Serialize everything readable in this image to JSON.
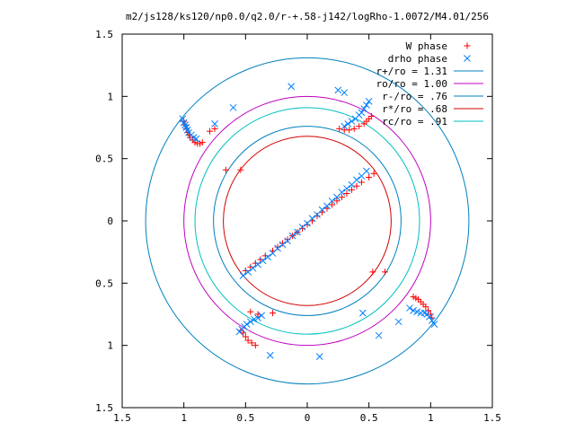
{
  "chart_data": {
    "type": "scatter",
    "title": "m2/js128/ks120/np0.0/q2.0/r-+.58-j142/logRho-1.0072/M4.01/256",
    "xlim": [
      -1.5,
      1.5
    ],
    "ylim": [
      -1.5,
      1.5
    ],
    "xticks": [
      -1.5,
      -1,
      -0.5,
      0,
      0.5,
      1,
      1.5
    ],
    "yticks": [
      -1.5,
      -1,
      -0.5,
      0,
      0.5,
      1,
      1.5
    ],
    "xtick_labels": [
      "1.5",
      "1",
      "0.5",
      "0",
      "0.5",
      "1",
      "1.5"
    ],
    "ytick_labels": [
      "1.5",
      "1",
      "0.5",
      "0",
      "0.5",
      "1",
      "1.5"
    ],
    "grid": false,
    "legend_placement": "top-right",
    "legend": [
      {
        "label": "W phase",
        "kind": "plus",
        "color": "#ff0000"
      },
      {
        "label": "drho phase",
        "kind": "cross",
        "color": "#0080ff"
      },
      {
        "label": "r+/ro = 1.31",
        "kind": "line",
        "color": "#0080c0"
      },
      {
        "label": "ro/ro = 1.00",
        "kind": "line",
        "color": "#c000c0"
      },
      {
        "label": "r-/ro = .76",
        "kind": "line",
        "color": "#0080c0"
      },
      {
        "label": "r*/ro = .68",
        "kind": "line",
        "color": "#d00000"
      },
      {
        "label": "rc/ro = .91",
        "kind": "line",
        "color": "#00c0c0"
      }
    ],
    "circles": [
      {
        "name": "r+/ro",
        "r": 1.31,
        "color": "#0080c0"
      },
      {
        "name": "ro/ro",
        "r": 1.0,
        "color": "#c000c0"
      },
      {
        "name": "r-/ro",
        "r": 0.76,
        "color": "#0080c0"
      },
      {
        "name": "r*/ro",
        "r": 0.68,
        "color": "#d00000"
      },
      {
        "name": "rc/ro",
        "r": 0.91,
        "color": "#00c0c0"
      }
    ],
    "series": [
      {
        "name": "W phase",
        "marker": "plus",
        "color": "#ff0000",
        "x": [
          -0.28,
          -0.24,
          -0.2,
          -0.16,
          -0.12,
          -0.08,
          -0.04,
          0.0,
          0.04,
          0.08,
          0.12,
          0.16,
          0.2,
          0.24,
          0.28,
          0.32,
          0.36,
          0.4,
          0.44,
          0.5,
          0.54,
          -0.5,
          -0.46,
          -0.42,
          -0.38,
          -0.34,
          -1.0,
          -0.99,
          -0.98,
          -0.97,
          -0.96,
          -0.95,
          -0.93,
          -0.91,
          -0.89,
          -0.87,
          -0.85,
          0.26,
          0.3,
          0.34,
          0.38,
          0.42,
          0.46,
          0.48,
          0.5,
          0.52,
          0.86,
          0.88,
          0.9,
          0.92,
          0.94,
          0.96,
          0.98,
          1.0,
          1.01,
          -0.54,
          -0.52,
          -0.5,
          -0.48,
          -0.45,
          -0.42,
          -0.75,
          -0.79,
          -0.66,
          -0.54,
          0.53,
          0.63,
          -0.46,
          -0.28,
          -0.4
        ],
        "y": [
          -0.24,
          -0.21,
          -0.18,
          -0.15,
          -0.12,
          -0.09,
          -0.06,
          -0.03,
          0.0,
          0.04,
          0.07,
          0.1,
          0.13,
          0.16,
          0.19,
          0.22,
          0.25,
          0.28,
          0.31,
          0.35,
          0.38,
          -0.4,
          -0.37,
          -0.34,
          -0.31,
          -0.28,
          0.8,
          0.77,
          0.74,
          0.71,
          0.69,
          0.67,
          0.65,
          0.63,
          0.62,
          0.62,
          0.63,
          0.74,
          0.73,
          0.73,
          0.74,
          0.76,
          0.78,
          0.8,
          0.82,
          0.84,
          -0.61,
          -0.62,
          -0.63,
          -0.65,
          -0.67,
          -0.69,
          -0.72,
          -0.75,
          -0.78,
          -0.88,
          -0.9,
          -0.93,
          -0.96,
          -0.98,
          -1.0,
          0.74,
          0.72,
          0.41,
          0.41,
          -0.41,
          -0.41,
          -0.73,
          -0.74,
          -0.75
        ]
      },
      {
        "name": "drho phase",
        "marker": "cross",
        "color": "#0080ff",
        "x": [
          -0.52,
          -0.48,
          -0.44,
          -0.4,
          -0.36,
          -0.32,
          -0.28,
          -0.24,
          -0.2,
          -0.16,
          -0.12,
          -0.08,
          -0.04,
          0.0,
          0.04,
          0.08,
          0.12,
          0.16,
          0.2,
          0.24,
          0.28,
          0.32,
          0.36,
          0.4,
          0.44,
          0.48,
          -1.01,
          -1.0,
          -0.99,
          -0.98,
          -0.97,
          -0.96,
          -0.94,
          -0.92,
          -0.9,
          0.3,
          0.33,
          0.36,
          0.39,
          0.42,
          0.44,
          0.46,
          0.48,
          0.5,
          0.83,
          0.86,
          0.89,
          0.92,
          0.95,
          0.97,
          0.99,
          1.01,
          1.03,
          -0.55,
          -0.53,
          -0.51,
          -0.49,
          -0.46,
          -0.43,
          -0.4,
          -0.37,
          -0.13,
          0.25,
          0.3,
          -0.6,
          -0.75,
          0.58,
          0.74,
          0.1,
          -0.3,
          0.45
        ],
        "y": [
          -0.44,
          -0.41,
          -0.38,
          -0.35,
          -0.32,
          -0.29,
          -0.26,
          -0.22,
          -0.19,
          -0.16,
          -0.12,
          -0.09,
          -0.05,
          -0.02,
          0.02,
          0.05,
          0.09,
          0.12,
          0.16,
          0.19,
          0.23,
          0.26,
          0.29,
          0.33,
          0.36,
          0.4,
          0.82,
          0.79,
          0.77,
          0.75,
          0.73,
          0.71,
          0.69,
          0.67,
          0.66,
          0.76,
          0.78,
          0.8,
          0.82,
          0.85,
          0.87,
          0.9,
          0.93,
          0.96,
          -0.7,
          -0.72,
          -0.73,
          -0.74,
          -0.74,
          -0.75,
          -0.77,
          -0.8,
          -0.83,
          -0.89,
          -0.87,
          -0.85,
          -0.83,
          -0.81,
          -0.79,
          -0.78,
          -0.76,
          1.08,
          1.05,
          1.03,
          0.91,
          0.78,
          -0.92,
          -0.81,
          -1.09,
          -1.08,
          -0.74
        ]
      }
    ]
  }
}
